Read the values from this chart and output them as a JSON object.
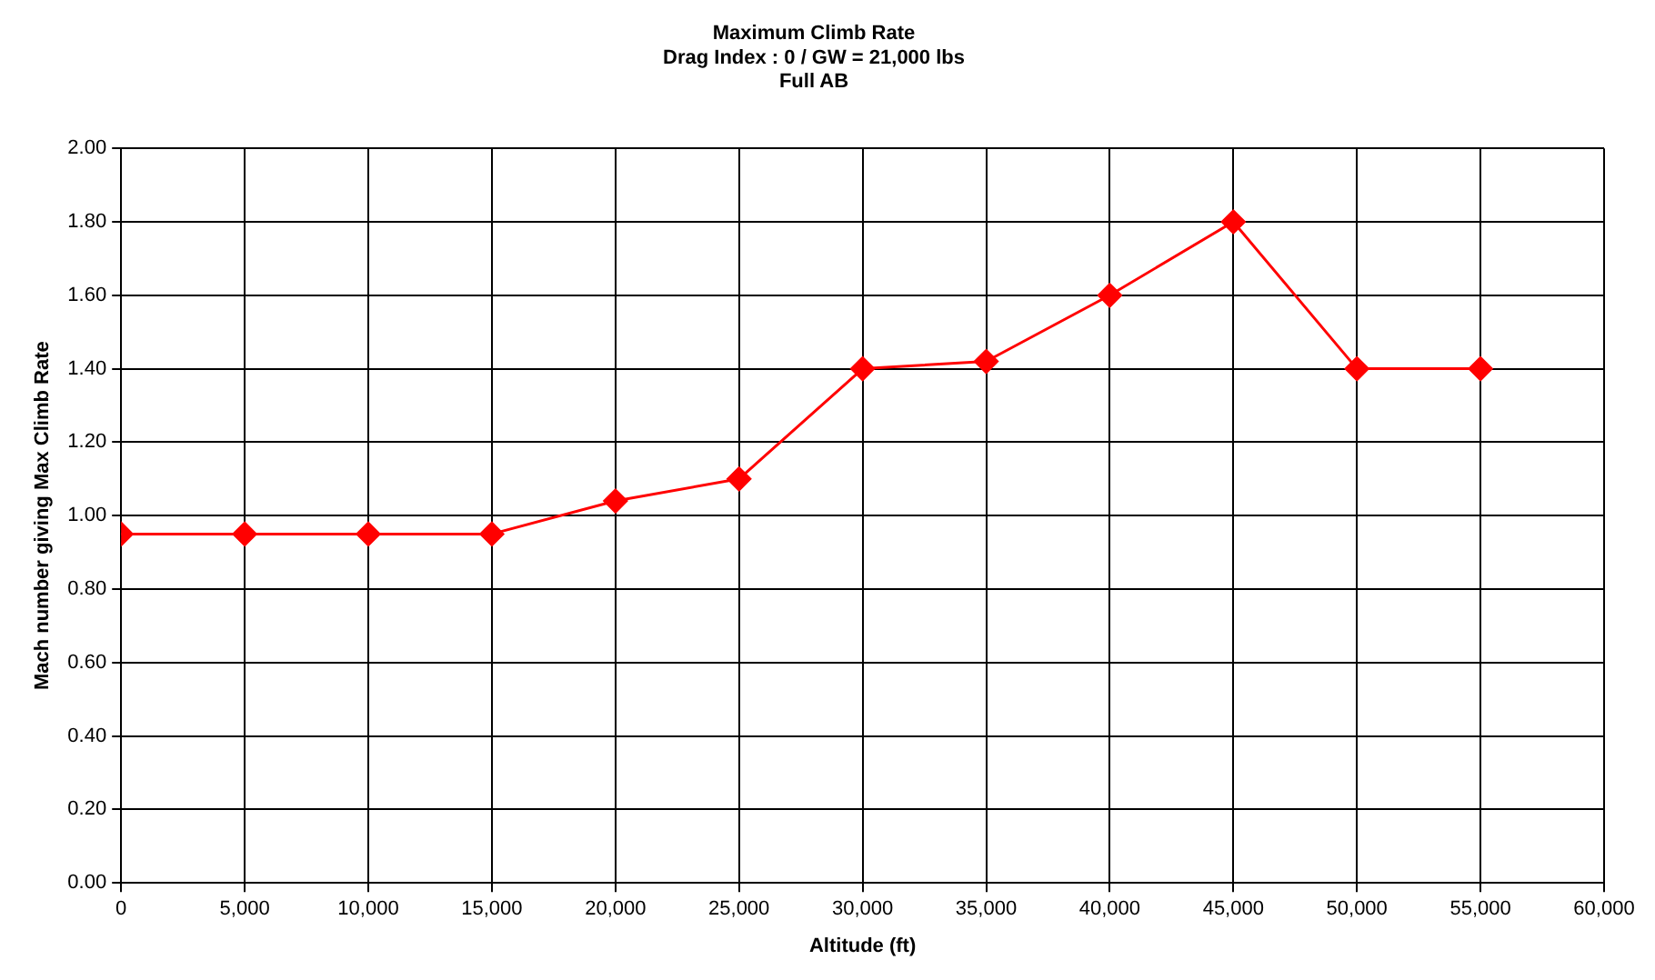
{
  "chart_data": {
    "type": "line",
    "title": "Maximum Climb Rate\nDrag Index : 0 / GW = 21,000 lbs\nFull AB",
    "xlabel": "Altitude (ft)",
    "ylabel": "Mach number giving Max Climb Rate",
    "x": [
      0,
      5000,
      10000,
      15000,
      20000,
      25000,
      30000,
      35000,
      40000,
      45000,
      50000,
      55000
    ],
    "series": [
      {
        "color": "#ff0000",
        "values": [
          0.95,
          0.95,
          0.95,
          0.95,
          1.04,
          1.1,
          1.4,
          1.42,
          1.6,
          1.8,
          1.4,
          1.4
        ]
      }
    ],
    "xlim": [
      0,
      60000
    ],
    "xticks": [
      0,
      {
        "value": 5000,
        "label": "5,000"
      },
      {
        "value": 10000,
        "label": "10,000"
      },
      {
        "value": 15000,
        "label": "15,000"
      },
      {
        "value": 20000,
        "label": "20,000"
      },
      {
        "value": 25000,
        "label": "25,000"
      },
      {
        "value": 30000,
        "label": "30,000"
      },
      {
        "value": 35000,
        "label": "35,000"
      },
      {
        "value": 40000,
        "label": "40,000"
      },
      {
        "value": 45000,
        "label": "45,000"
      },
      {
        "value": 50000,
        "label": "50,000"
      },
      {
        "value": 55000,
        "label": "55,000"
      },
      {
        "value": 60000,
        "label": "60,000"
      }
    ],
    "ylim": [
      0,
      2
    ],
    "yticks": [
      {
        "value": 0,
        "label": "0.00"
      },
      {
        "value": 0.2,
        "label": "0.20"
      },
      {
        "value": 0.4,
        "label": "0.40"
      },
      {
        "value": 0.6,
        "label": "0.60"
      },
      {
        "value": 0.8,
        "label": "0.80"
      },
      {
        "value": 1,
        "label": "1.00"
      },
      {
        "value": 1.2,
        "label": "1.20"
      },
      {
        "value": 1.4,
        "label": "1.40"
      },
      {
        "value": 1.6,
        "label": "1.60"
      },
      {
        "value": 1.8,
        "label": "1.80"
      },
      {
        "value": 2,
        "label": "2.00"
      }
    ],
    "grid": true,
    "legend": false,
    "marker": "diamond",
    "line_style": "solid"
  }
}
